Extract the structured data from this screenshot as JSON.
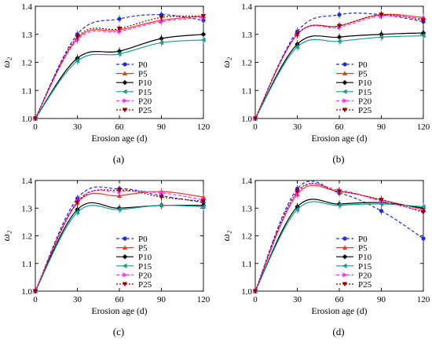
{
  "chart_data": [
    {
      "type": "line",
      "panel_label": "(a)",
      "xlabel": "Erosion age (d)",
      "ylabel": "ω₂",
      "xlim": [
        0,
        120
      ],
      "ylim": [
        1.0,
        1.4
      ],
      "x_ticks": [
        "0",
        "30",
        "60",
        "90",
        "120"
      ],
      "y_ticks": [
        "1.0",
        "1.1",
        "1.2",
        "1.3",
        "1.4"
      ],
      "x": [
        0,
        30,
        60,
        90,
        120
      ],
      "legend_position": "lower-right",
      "series": [
        {
          "name": "P0",
          "values": [
            1.0,
            1.3,
            1.355,
            1.37,
            1.35
          ],
          "color": "#1f2fd8",
          "dash": "dashed",
          "marker": "circle"
        },
        {
          "name": "P5",
          "values": [
            1.0,
            1.285,
            1.315,
            1.35,
            1.365
          ],
          "color": "#ff3333",
          "dash": "solid",
          "marker": "triangle-up"
        },
        {
          "name": "P10",
          "values": [
            1.0,
            1.215,
            1.24,
            1.285,
            1.3
          ],
          "color": "#000000",
          "dash": "solid",
          "marker": "diamond"
        },
        {
          "name": "P15",
          "values": [
            1.0,
            1.205,
            1.23,
            1.27,
            1.28
          ],
          "color": "#1a9c94",
          "dash": "solid",
          "marker": "triangle-left"
        },
        {
          "name": "P20",
          "values": [
            1.0,
            1.28,
            1.31,
            1.345,
            1.36
          ],
          "color": "#ff33ff",
          "dash": "dashed",
          "marker": "triangle-right"
        },
        {
          "name": "P25",
          "values": [
            1.0,
            1.29,
            1.32,
            1.36,
            1.365
          ],
          "color": "#8b0000",
          "dash": "dotted",
          "marker": "triangle-down"
        }
      ]
    },
    {
      "type": "line",
      "panel_label": "(b)",
      "xlabel": "Erosion age (d)",
      "ylabel": "ω₂",
      "xlim": [
        0,
        120
      ],
      "ylim": [
        1.0,
        1.4
      ],
      "x_ticks": [
        "0",
        "30",
        "60",
        "90",
        "120"
      ],
      "y_ticks": [
        "1.0",
        "1.1",
        "1.2",
        "1.3",
        "1.4"
      ],
      "x": [
        0,
        30,
        60,
        90,
        120
      ],
      "legend_position": "lower-right",
      "series": [
        {
          "name": "P0",
          "values": [
            1.0,
            1.31,
            1.37,
            1.37,
            1.345
          ],
          "color": "#1f2fd8",
          "dash": "dashed",
          "marker": "circle"
        },
        {
          "name": "P5",
          "values": [
            1.0,
            1.3,
            1.33,
            1.37,
            1.36
          ],
          "color": "#ff3333",
          "dash": "solid",
          "marker": "triangle-up"
        },
        {
          "name": "P10",
          "values": [
            1.0,
            1.265,
            1.29,
            1.3,
            1.305
          ],
          "color": "#000000",
          "dash": "solid",
          "marker": "diamond"
        },
        {
          "name": "P15",
          "values": [
            1.0,
            1.255,
            1.275,
            1.29,
            1.295
          ],
          "color": "#1a9c94",
          "dash": "solid",
          "marker": "triangle-left"
        },
        {
          "name": "P20",
          "values": [
            1.0,
            1.3,
            1.325,
            1.365,
            1.355
          ],
          "color": "#ff33ff",
          "dash": "dashed",
          "marker": "triangle-right"
        },
        {
          "name": "P25",
          "values": [
            1.0,
            1.3,
            1.33,
            1.37,
            1.35
          ],
          "color": "#8b0000",
          "dash": "dotted",
          "marker": "triangle-down"
        }
      ]
    },
    {
      "type": "line",
      "panel_label": "(c)",
      "xlabel": "Erosion age (d)",
      "ylabel": "ω₂",
      "xlim": [
        0,
        120
      ],
      "ylim": [
        1.0,
        1.4
      ],
      "x_ticks": [
        "0",
        "30",
        "60",
        "90",
        "120"
      ],
      "y_ticks": [
        "1.0",
        "1.1",
        "1.2",
        "1.3",
        "1.4"
      ],
      "x": [
        0,
        30,
        60,
        90,
        120
      ],
      "legend_position": "lower-right",
      "series": [
        {
          "name": "P0",
          "values": [
            1.0,
            1.335,
            1.37,
            1.345,
            1.32
          ],
          "color": "#1f2fd8",
          "dash": "dashed",
          "marker": "circle"
        },
        {
          "name": "P5",
          "values": [
            1.0,
            1.32,
            1.345,
            1.36,
            1.34
          ],
          "color": "#ff3333",
          "dash": "solid",
          "marker": "triangle-up"
        },
        {
          "name": "P10",
          "values": [
            1.0,
            1.295,
            1.3,
            1.31,
            1.31
          ],
          "color": "#000000",
          "dash": "solid",
          "marker": "diamond"
        },
        {
          "name": "P15",
          "values": [
            1.0,
            1.285,
            1.295,
            1.31,
            1.305
          ],
          "color": "#1a9c94",
          "dash": "solid",
          "marker": "triangle-left"
        },
        {
          "name": "P20",
          "values": [
            1.0,
            1.325,
            1.36,
            1.355,
            1.33
          ],
          "color": "#ff33ff",
          "dash": "dashed",
          "marker": "triangle-right"
        },
        {
          "name": "P25",
          "values": [
            1.0,
            1.32,
            1.365,
            1.34,
            1.325
          ],
          "color": "#8b0000",
          "dash": "dotted",
          "marker": "triangle-down"
        }
      ]
    },
    {
      "type": "line",
      "panel_label": "(d)",
      "xlabel": "Erosion age (d)",
      "ylabel": "ω₂",
      "xlim": [
        0,
        120
      ],
      "ylim": [
        1.0,
        1.4
      ],
      "x_ticks": [
        "0",
        "30",
        "60",
        "90",
        "120"
      ],
      "y_ticks": [
        "1.0",
        "1.1",
        "1.2",
        "1.3",
        "1.4"
      ],
      "x": [
        0,
        30,
        60,
        90,
        120
      ],
      "legend_position": "lower-right",
      "series": [
        {
          "name": "P0",
          "values": [
            1.0,
            1.37,
            1.355,
            1.29,
            1.19
          ],
          "color": "#1f2fd8",
          "dash": "dashed",
          "marker": "circle"
        },
        {
          "name": "P5",
          "values": [
            1.0,
            1.35,
            1.36,
            1.33,
            1.295
          ],
          "color": "#ff3333",
          "dash": "solid",
          "marker": "triangle-up"
        },
        {
          "name": "P10",
          "values": [
            1.0,
            1.305,
            1.315,
            1.32,
            1.3
          ],
          "color": "#000000",
          "dash": "solid",
          "marker": "diamond"
        },
        {
          "name": "P15",
          "values": [
            1.0,
            1.295,
            1.31,
            1.315,
            1.305
          ],
          "color": "#1a9c94",
          "dash": "solid",
          "marker": "triangle-left"
        },
        {
          "name": "P20",
          "values": [
            1.0,
            1.355,
            1.365,
            1.325,
            1.29
          ],
          "color": "#ff33ff",
          "dash": "dashed",
          "marker": "triangle-right"
        },
        {
          "name": "P25",
          "values": [
            1.0,
            1.36,
            1.36,
            1.33,
            1.285
          ],
          "color": "#8b0000",
          "dash": "dotted",
          "marker": "triangle-down"
        }
      ]
    }
  ]
}
